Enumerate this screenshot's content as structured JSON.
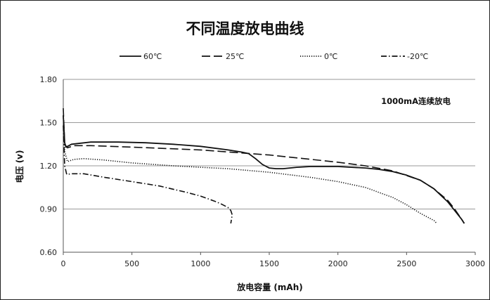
{
  "chart_data": {
    "type": "line",
    "title": "不同温度放电曲线",
    "xlabel": "放电容量 (mAh)",
    "ylabel": "电压 (v)",
    "xlim": [
      0,
      3000
    ],
    "ylim": [
      0.6,
      1.8
    ],
    "x_ticks": [
      "0",
      "500",
      "1000",
      "1500",
      "2000",
      "2500",
      "3000"
    ],
    "y_ticks": [
      "0.60",
      "0.90",
      "1.20",
      "1.50",
      "1.80"
    ],
    "grid": "horizontal",
    "legend_position": "top",
    "annotation": "1000mA连续放电",
    "series": [
      {
        "name": "60℃",
        "style": "solid",
        "points": [
          [
            0,
            1.55
          ],
          [
            10,
            1.36
          ],
          [
            20,
            1.33
          ],
          [
            60,
            1.35
          ],
          [
            200,
            1.365
          ],
          [
            400,
            1.365
          ],
          [
            600,
            1.36
          ],
          [
            800,
            1.35
          ],
          [
            1000,
            1.335
          ],
          [
            1200,
            1.31
          ],
          [
            1300,
            1.295
          ],
          [
            1350,
            1.285
          ],
          [
            1400,
            1.25
          ],
          [
            1450,
            1.21
          ],
          [
            1500,
            1.185
          ],
          [
            1550,
            1.18
          ],
          [
            1600,
            1.18
          ],
          [
            1700,
            1.19
          ],
          [
            1800,
            1.195
          ],
          [
            1900,
            1.195
          ],
          [
            2000,
            1.195
          ],
          [
            2100,
            1.19
          ],
          [
            2200,
            1.185
          ],
          [
            2300,
            1.175
          ],
          [
            2400,
            1.16
          ],
          [
            2500,
            1.135
          ],
          [
            2600,
            1.1
          ],
          [
            2700,
            1.04
          ],
          [
            2800,
            0.95
          ],
          [
            2850,
            0.89
          ],
          [
            2900,
            0.83
          ],
          [
            2920,
            0.8
          ]
        ]
      },
      {
        "name": "25℃",
        "style": "dashed",
        "points": [
          [
            0,
            1.6
          ],
          [
            10,
            1.35
          ],
          [
            30,
            1.325
          ],
          [
            80,
            1.34
          ],
          [
            200,
            1.34
          ],
          [
            500,
            1.33
          ],
          [
            1000,
            1.31
          ],
          [
            1500,
            1.275
          ],
          [
            2000,
            1.225
          ],
          [
            2200,
            1.2
          ],
          [
            2400,
            1.165
          ],
          [
            2600,
            1.1
          ],
          [
            2700,
            1.04
          ],
          [
            2800,
            0.96
          ],
          [
            2850,
            0.9
          ],
          [
            2900,
            0.83
          ],
          [
            2920,
            0.8
          ]
        ]
      },
      {
        "name": "0℃",
        "style": "dotted",
        "points": [
          [
            0,
            1.55
          ],
          [
            10,
            1.3
          ],
          [
            30,
            1.23
          ],
          [
            80,
            1.245
          ],
          [
            150,
            1.25
          ],
          [
            300,
            1.24
          ],
          [
            500,
            1.22
          ],
          [
            800,
            1.2
          ],
          [
            1000,
            1.19
          ],
          [
            1200,
            1.18
          ],
          [
            1500,
            1.155
          ],
          [
            1800,
            1.12
          ],
          [
            2000,
            1.09
          ],
          [
            2200,
            1.05
          ],
          [
            2400,
            0.98
          ],
          [
            2500,
            0.93
          ],
          [
            2600,
            0.87
          ],
          [
            2700,
            0.82
          ],
          [
            2720,
            0.8
          ]
        ]
      },
      {
        "name": "-20℃",
        "style": "dashdot",
        "points": [
          [
            0,
            1.48
          ],
          [
            10,
            1.2
          ],
          [
            25,
            1.14
          ],
          [
            60,
            1.145
          ],
          [
            150,
            1.145
          ],
          [
            300,
            1.12
          ],
          [
            500,
            1.09
          ],
          [
            700,
            1.06
          ],
          [
            900,
            1.015
          ],
          [
            1000,
            0.99
          ],
          [
            1100,
            0.955
          ],
          [
            1150,
            0.935
          ],
          [
            1200,
            0.91
          ],
          [
            1220,
            0.89
          ],
          [
            1230,
            0.86
          ],
          [
            1220,
            0.8
          ]
        ]
      }
    ]
  }
}
